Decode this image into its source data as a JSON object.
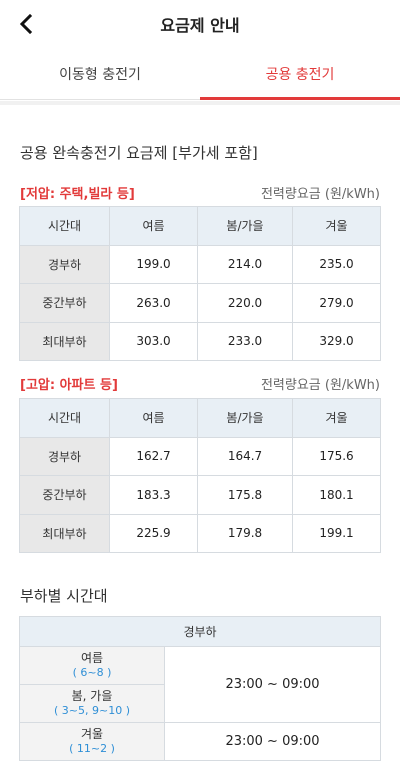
{
  "header": {
    "title": "요금제 안내",
    "back_icon": "chevron-left-icon"
  },
  "tabs": [
    {
      "label": "이동형 충전기",
      "active": false
    },
    {
      "label": "공용 충전기",
      "active": true
    }
  ],
  "rate_section": {
    "title": "공용 완속충전기 요금제 [부가세 포함]",
    "unit": "전력량요금 (원/kWh)",
    "columns": [
      "시간대",
      "여름",
      "봄/가을",
      "겨울"
    ],
    "tables": [
      {
        "label": "[저압: 주택,빌라 등]",
        "rows": [
          {
            "name": "경부하",
            "values": [
              "199.0",
              "214.0",
              "235.0"
            ]
          },
          {
            "name": "중간부하",
            "values": [
              "263.0",
              "220.0",
              "279.0"
            ]
          },
          {
            "name": "최대부하",
            "values": [
              "303.0",
              "233.0",
              "329.0"
            ]
          }
        ]
      },
      {
        "label": "[고압: 아파트 등]",
        "rows": [
          {
            "name": "경부하",
            "values": [
              "162.7",
              "164.7",
              "175.6"
            ]
          },
          {
            "name": "중간부하",
            "values": [
              "183.3",
              "175.8",
              "180.1"
            ]
          },
          {
            "name": "최대부하",
            "values": [
              "225.9",
              "179.8",
              "199.1"
            ]
          }
        ]
      }
    ]
  },
  "load_section": {
    "title": "부하별 시간대",
    "table_header": "경부하",
    "seasons": [
      {
        "name": "여름",
        "range": "( 6~8 )"
      },
      {
        "name": "봄, 가을",
        "range": "( 3~5, 9~10 )"
      },
      {
        "name": "겨울",
        "range": "( 11~2 )"
      }
    ],
    "times": [
      "23:00 ~ 09:00",
      "23:00 ~ 09:00"
    ]
  },
  "colors": {
    "accent": "#e23a3a",
    "header_bg": "#e8eff5",
    "row_header_bg": "#e8e8e8",
    "range_text": "#2f8fd6"
  }
}
